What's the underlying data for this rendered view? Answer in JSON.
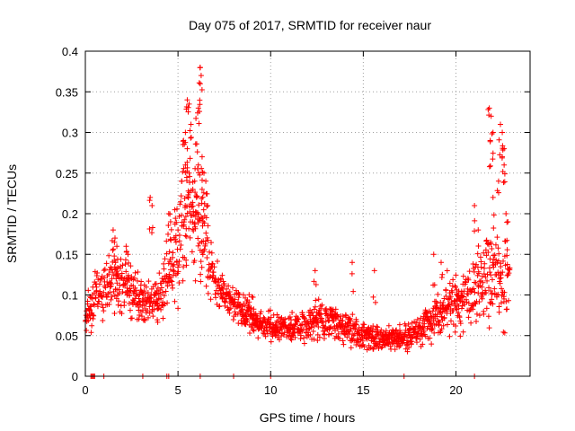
{
  "chart_data": {
    "type": "scatter",
    "title": "Day 075 of 2017, SRMTID for receiver naur",
    "xlabel": "GPS time / hours",
    "ylabel": "SRMTID / TECUs",
    "xlim": [
      0,
      24
    ],
    "ylim": [
      0,
      0.4
    ],
    "xticks": [
      0,
      5,
      10,
      15,
      20
    ],
    "yticks": [
      0,
      0.05,
      0.1,
      0.15,
      0.2,
      0.25,
      0.3,
      0.35,
      0.4
    ],
    "xtick_labels": [
      "0",
      "5",
      "10",
      "15",
      "20"
    ],
    "ytick_labels": [
      "0",
      "0.05",
      "0.1",
      "0.15",
      "0.2",
      "0.25",
      "0.3",
      "0.35",
      "0.4"
    ],
    "grid": true,
    "marker": "+",
    "color": "#ff0000",
    "series": [
      {
        "name": "SRMTID",
        "trend_x": [
          0,
          0.5,
          1,
          1.5,
          2,
          2.5,
          3,
          3.5,
          4,
          4.5,
          5,
          5.5,
          6,
          6.5,
          7,
          7.5,
          8,
          8.5,
          9,
          9.5,
          10,
          10.5,
          11,
          11.5,
          12,
          12.5,
          13,
          13.5,
          14,
          14.5,
          15,
          15.5,
          16,
          16.5,
          17,
          17.5,
          18,
          18.5,
          19,
          19.5,
          20,
          20.5,
          21,
          21.5,
          22,
          22.5,
          23
        ],
        "trend_y": [
          0.07,
          0.1,
          0.11,
          0.12,
          0.115,
          0.1,
          0.095,
          0.085,
          0.1,
          0.13,
          0.17,
          0.2,
          0.21,
          0.16,
          0.11,
          0.1,
          0.09,
          0.08,
          0.075,
          0.065,
          0.06,
          0.058,
          0.06,
          0.062,
          0.065,
          0.07,
          0.068,
          0.065,
          0.06,
          0.055,
          0.05,
          0.048,
          0.045,
          0.045,
          0.048,
          0.05,
          0.055,
          0.065,
          0.075,
          0.085,
          0.09,
          0.1,
          0.11,
          0.12,
          0.13,
          0.12,
          0.12
        ],
        "spread": [
          0.015,
          0.03,
          0.03,
          0.035,
          0.03,
          0.025,
          0.025,
          0.025,
          0.035,
          0.045,
          0.06,
          0.08,
          0.08,
          0.05,
          0.025,
          0.022,
          0.02,
          0.02,
          0.018,
          0.016,
          0.015,
          0.015,
          0.016,
          0.018,
          0.02,
          0.022,
          0.02,
          0.02,
          0.02,
          0.018,
          0.015,
          0.014,
          0.013,
          0.013,
          0.014,
          0.015,
          0.016,
          0.02,
          0.025,
          0.03,
          0.03,
          0.035,
          0.04,
          0.05,
          0.06,
          0.05,
          0.04
        ],
        "peaks": [
          [
            5.3,
            0.29
          ],
          [
            5.4,
            0.3
          ],
          [
            5.5,
            0.34
          ],
          [
            5.6,
            0.335
          ],
          [
            5.7,
            0.31
          ],
          [
            5.5,
            0.28
          ],
          [
            5.4,
            0.26
          ],
          [
            5.6,
            0.25
          ],
          [
            5.2,
            0.24
          ],
          [
            5.8,
            0.23
          ],
          [
            5.9,
            0.24
          ],
          [
            6.1,
            0.33
          ],
          [
            6.2,
            0.38
          ],
          [
            6.25,
            0.37
          ],
          [
            6.2,
            0.36
          ],
          [
            6.3,
            0.27
          ],
          [
            6.1,
            0.26
          ],
          [
            6.4,
            0.25
          ],
          [
            6.5,
            0.24
          ],
          [
            6.0,
            0.22
          ],
          [
            6.6,
            0.21
          ],
          [
            6.3,
            0.23
          ],
          [
            3.5,
            0.22
          ],
          [
            3.6,
            0.21
          ],
          [
            1.5,
            0.18
          ],
          [
            1.6,
            0.17
          ],
          [
            1.7,
            0.16
          ],
          [
            2.2,
            0.16
          ],
          [
            2.3,
            0.15
          ],
          [
            4.5,
            0.2
          ],
          [
            4.6,
            0.19
          ],
          [
            5.0,
            0.18
          ],
          [
            21.8,
            0.33
          ],
          [
            21.9,
            0.32
          ],
          [
            22.0,
            0.3
          ],
          [
            21.85,
            0.29
          ],
          [
            22.4,
            0.31
          ],
          [
            22.5,
            0.3
          ],
          [
            22.6,
            0.26
          ],
          [
            22.5,
            0.27
          ],
          [
            22.7,
            0.2
          ],
          [
            22.8,
            0.19
          ],
          [
            21.0,
            0.21
          ],
          [
            21.2,
            0.18
          ],
          [
            22.0,
            0.22
          ],
          [
            22.3,
            0.24
          ],
          [
            22.6,
            0.28
          ],
          [
            18.8,
            0.15
          ],
          [
            19.2,
            0.14
          ],
          [
            14.4,
            0.14
          ],
          [
            12.4,
            0.13
          ],
          [
            15.6,
            0.13
          ]
        ],
        "zeros": [
          0.3,
          0.35,
          0.4,
          0.45,
          0.5,
          1.0,
          3.1,
          4.4,
          4.5,
          6.2,
          8.0,
          10.0,
          17.2,
          21.0
        ]
      }
    ]
  }
}
